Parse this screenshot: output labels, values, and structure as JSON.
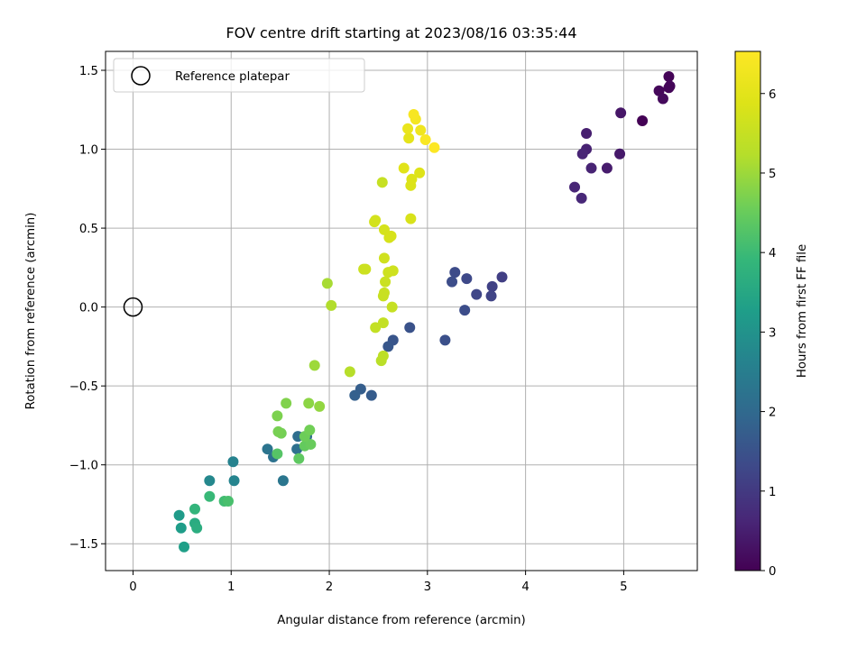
{
  "chart_data": {
    "type": "scatter",
    "title": "FOV centre drift starting at 2023/08/16 03:35:44",
    "xlabel": "Angular distance from reference (arcmin)",
    "ylabel": "Rotation from reference (arcmin)",
    "xlim": [
      -0.28,
      5.75
    ],
    "ylim": [
      -1.67,
      1.62
    ],
    "xticks": [
      "0",
      "1",
      "2",
      "3",
      "4",
      "5"
    ],
    "xtick_values": [
      0,
      1,
      2,
      3,
      4,
      5
    ],
    "yticks": [
      "−1.5",
      "−1.0",
      "−0.5",
      "0.0",
      "0.5",
      "1.0",
      "1.5"
    ],
    "ytick_values": [
      -1.5,
      -1.0,
      -0.5,
      0.0,
      0.5,
      1.0,
      1.5
    ],
    "grid": true,
    "legend": {
      "position": "top-left",
      "entries": [
        "Reference platepar"
      ]
    },
    "reference_point": {
      "x": 0.0,
      "y": 0.0
    },
    "colorbar": {
      "label": "Hours from first FF file",
      "colormap": "viridis",
      "range": [
        0,
        6.53
      ],
      "ticks": [
        "0",
        "1",
        "2",
        "3",
        "4",
        "5",
        "6"
      ],
      "tick_values": [
        0,
        1,
        2,
        3,
        4,
        5,
        6
      ]
    },
    "points": [
      {
        "x": 5.46,
        "y": 1.46,
        "h": 0.05
      },
      {
        "x": 5.36,
        "y": 1.37,
        "h": 0.1
      },
      {
        "x": 5.47,
        "y": 1.4,
        "h": 0.12
      },
      {
        "x": 5.4,
        "y": 1.32,
        "h": 0.15
      },
      {
        "x": 5.46,
        "y": 1.39,
        "h": 0.08
      },
      {
        "x": 5.19,
        "y": 1.18,
        "h": 0.02
      },
      {
        "x": 4.97,
        "y": 1.23,
        "h": 0.35
      },
      {
        "x": 4.96,
        "y": 0.97,
        "h": 0.4
      },
      {
        "x": 4.83,
        "y": 0.88,
        "h": 0.45
      },
      {
        "x": 4.62,
        "y": 1.1,
        "h": 0.5
      },
      {
        "x": 4.62,
        "y": 1.0,
        "h": 0.55
      },
      {
        "x": 4.58,
        "y": 0.97,
        "h": 0.6
      },
      {
        "x": 4.67,
        "y": 0.88,
        "h": 0.58
      },
      {
        "x": 4.5,
        "y": 0.76,
        "h": 0.62
      },
      {
        "x": 4.57,
        "y": 0.69,
        "h": 0.66
      },
      {
        "x": 3.76,
        "y": 0.19,
        "h": 1.1
      },
      {
        "x": 3.66,
        "y": 0.13,
        "h": 1.15
      },
      {
        "x": 3.65,
        "y": 0.07,
        "h": 1.2
      },
      {
        "x": 3.5,
        "y": 0.08,
        "h": 1.25
      },
      {
        "x": 3.4,
        "y": 0.18,
        "h": 1.3
      },
      {
        "x": 3.28,
        "y": 0.22,
        "h": 1.35
      },
      {
        "x": 3.25,
        "y": 0.16,
        "h": 1.38
      },
      {
        "x": 3.38,
        "y": -0.02,
        "h": 1.4
      },
      {
        "x": 3.18,
        "y": -0.21,
        "h": 1.45
      },
      {
        "x": 2.82,
        "y": -0.13,
        "h": 1.5
      },
      {
        "x": 2.65,
        "y": -0.21,
        "h": 1.55
      },
      {
        "x": 2.6,
        "y": -0.25,
        "h": 1.6
      },
      {
        "x": 2.43,
        "y": -0.56,
        "h": 1.7
      },
      {
        "x": 2.32,
        "y": -0.52,
        "h": 1.75
      },
      {
        "x": 2.26,
        "y": -0.56,
        "h": 1.8
      },
      {
        "x": 1.77,
        "y": -0.82,
        "h": 2.05
      },
      {
        "x": 1.68,
        "y": -0.82,
        "h": 2.1
      },
      {
        "x": 1.67,
        "y": -0.9,
        "h": 2.15
      },
      {
        "x": 1.43,
        "y": -0.95,
        "h": 2.2
      },
      {
        "x": 1.37,
        "y": -0.9,
        "h": 2.25
      },
      {
        "x": 1.53,
        "y": -1.1,
        "h": 2.3
      },
      {
        "x": 1.02,
        "y": -0.98,
        "h": 2.6
      },
      {
        "x": 1.03,
        "y": -1.1,
        "h": 2.65
      },
      {
        "x": 0.78,
        "y": -1.1,
        "h": 2.75
      },
      {
        "x": 0.47,
        "y": -1.32,
        "h": 3.2
      },
      {
        "x": 0.49,
        "y": -1.4,
        "h": 3.25
      },
      {
        "x": 0.52,
        "y": -1.52,
        "h": 3.3
      },
      {
        "x": 0.63,
        "y": -1.37,
        "h": 3.6
      },
      {
        "x": 0.65,
        "y": -1.4,
        "h": 3.65
      },
      {
        "x": 0.63,
        "y": -1.28,
        "h": 3.85
      },
      {
        "x": 0.78,
        "y": -1.2,
        "h": 3.95
      },
      {
        "x": 0.93,
        "y": -1.23,
        "h": 4.05
      },
      {
        "x": 0.97,
        "y": -1.23,
        "h": 4.15
      },
      {
        "x": 1.47,
        "y": -0.93,
        "h": 4.3
      },
      {
        "x": 1.69,
        "y": -0.96,
        "h": 4.4
      },
      {
        "x": 1.75,
        "y": -0.88,
        "h": 4.45
      },
      {
        "x": 1.81,
        "y": -0.87,
        "h": 4.5
      },
      {
        "x": 1.75,
        "y": -0.82,
        "h": 4.55
      },
      {
        "x": 1.8,
        "y": -0.78,
        "h": 4.6
      },
      {
        "x": 1.51,
        "y": -0.8,
        "h": 4.62
      },
      {
        "x": 1.48,
        "y": -0.79,
        "h": 4.65
      },
      {
        "x": 1.47,
        "y": -0.69,
        "h": 4.7
      },
      {
        "x": 1.56,
        "y": -0.61,
        "h": 4.75
      },
      {
        "x": 1.79,
        "y": -0.61,
        "h": 4.85
      },
      {
        "x": 1.9,
        "y": -0.63,
        "h": 4.9
      },
      {
        "x": 1.85,
        "y": -0.37,
        "h": 5.0
      },
      {
        "x": 1.98,
        "y": 0.15,
        "h": 5.1
      },
      {
        "x": 2.02,
        "y": 0.01,
        "h": 5.2
      },
      {
        "x": 2.21,
        "y": -0.41,
        "h": 5.25
      },
      {
        "x": 2.53,
        "y": -0.34,
        "h": 5.3
      },
      {
        "x": 2.55,
        "y": -0.31,
        "h": 5.35
      },
      {
        "x": 2.47,
        "y": -0.13,
        "h": 5.45
      },
      {
        "x": 2.55,
        "y": -0.1,
        "h": 5.45
      },
      {
        "x": 2.64,
        "y": 0.0,
        "h": 5.5
      },
      {
        "x": 2.55,
        "y": 0.07,
        "h": 5.52
      },
      {
        "x": 2.56,
        "y": 0.09,
        "h": 5.54
      },
      {
        "x": 2.57,
        "y": 0.16,
        "h": 5.56
      },
      {
        "x": 2.35,
        "y": 0.24,
        "h": 5.58
      },
      {
        "x": 2.37,
        "y": 0.24,
        "h": 5.6
      },
      {
        "x": 2.6,
        "y": 0.22,
        "h": 5.62
      },
      {
        "x": 2.65,
        "y": 0.23,
        "h": 5.64
      },
      {
        "x": 2.56,
        "y": 0.31,
        "h": 5.66
      },
      {
        "x": 2.54,
        "y": 0.79,
        "h": 5.5
      },
      {
        "x": 2.46,
        "y": 0.54,
        "h": 5.7
      },
      {
        "x": 2.47,
        "y": 0.55,
        "h": 5.72
      },
      {
        "x": 2.56,
        "y": 0.49,
        "h": 5.74
      },
      {
        "x": 2.61,
        "y": 0.44,
        "h": 5.76
      },
      {
        "x": 2.63,
        "y": 0.45,
        "h": 5.78
      },
      {
        "x": 2.83,
        "y": 0.56,
        "h": 5.8
      },
      {
        "x": 2.83,
        "y": 0.77,
        "h": 5.85
      },
      {
        "x": 2.84,
        "y": 0.81,
        "h": 5.88
      },
      {
        "x": 2.92,
        "y": 0.85,
        "h": 5.9
      },
      {
        "x": 2.76,
        "y": 0.88,
        "h": 5.95
      },
      {
        "x": 2.81,
        "y": 1.07,
        "h": 6.05
      },
      {
        "x": 2.8,
        "y": 1.13,
        "h": 6.15
      },
      {
        "x": 2.93,
        "y": 1.12,
        "h": 6.25
      },
      {
        "x": 2.88,
        "y": 1.19,
        "h": 6.35
      },
      {
        "x": 2.86,
        "y": 1.22,
        "h": 6.4
      },
      {
        "x": 2.98,
        "y": 1.06,
        "h": 6.45
      },
      {
        "x": 3.07,
        "y": 1.01,
        "h": 6.5
      }
    ]
  }
}
